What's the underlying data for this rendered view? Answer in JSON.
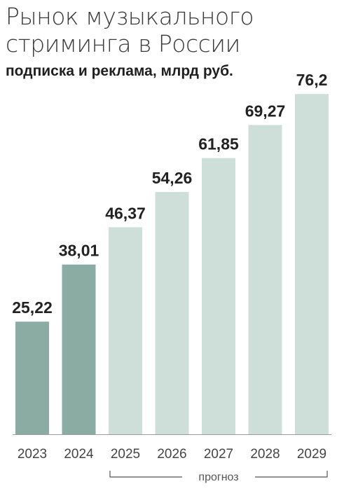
{
  "chart_data": {
    "type": "bar",
    "title": "Рынок музыкального\nстриминга в России",
    "subtitle": "подписка и реклама, млрд руб.",
    "categories": [
      "2023",
      "2024",
      "2025",
      "2026",
      "2027",
      "2028",
      "2029"
    ],
    "values": [
      25.22,
      38.01,
      46.37,
      54.26,
      61.85,
      69.27,
      76.2
    ],
    "value_labels": [
      "25,22",
      "38,01",
      "46,37",
      "54,26",
      "61,85",
      "69,27",
      "76,2"
    ],
    "forecast_from_index": 2,
    "forecast_label": "прогноз",
    "ylim": [
      0,
      80
    ],
    "grid": false,
    "colors": {
      "actual": "#8aaca3",
      "forecast": "#cddfd8",
      "baseline": "#9a9a9a"
    }
  }
}
